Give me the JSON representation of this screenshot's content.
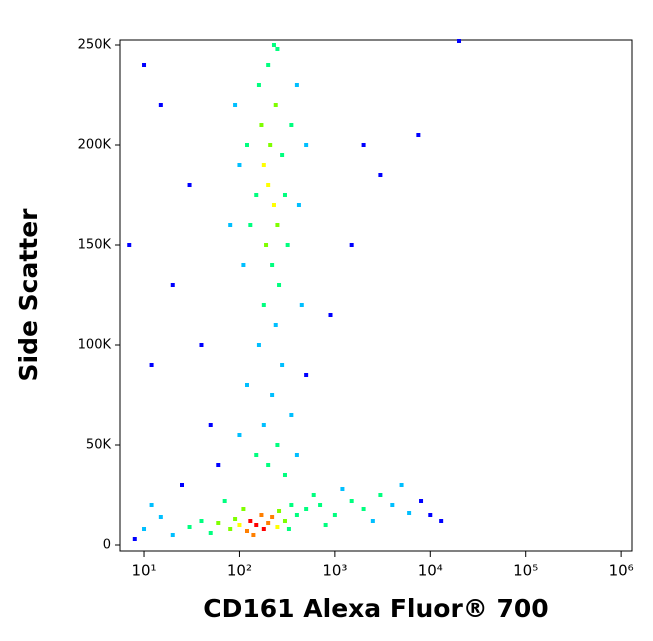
{
  "chart_data": {
    "type": "scatter",
    "x_label": "CD161 Alexa Fluor® 700",
    "y_label": "Side Scatter",
    "xscale": "log",
    "xlim": [
      5.6,
      1300000
    ],
    "xticks": [
      {
        "value": 10,
        "label": "10¹"
      },
      {
        "value": 100,
        "label": "10²"
      },
      {
        "value": 1000,
        "label": "10³"
      },
      {
        "value": 10000,
        "label": "10⁴"
      },
      {
        "value": 100000,
        "label": "10⁵"
      },
      {
        "value": 1000000,
        "label": "10⁶"
      }
    ],
    "ylim": [
      -3000,
      252500
    ],
    "yticks": [
      0,
      {
        "value": 50000,
        "label": "50K"
      },
      {
        "value": 100000,
        "label": "100K"
      },
      {
        "value": 150000,
        "label": "150K"
      },
      {
        "value": 200000,
        "label": "200K"
      },
      {
        "value": 250000,
        "label": "250K"
      }
    ],
    "colormap": [
      "#0000ff",
      "#00bfff",
      "#00ff7f",
      "#7fff00",
      "#ffff00",
      "#ff7f00",
      "#ff0000"
    ],
    "x": [
      150,
      180,
      130,
      200,
      120,
      170,
      250,
      100,
      220,
      140,
      90,
      300,
      80,
      60,
      110,
      260,
      330,
      50,
      40,
      30,
      20,
      15,
      10,
      8,
      12,
      70,
      350,
      400,
      500,
      700,
      1000,
      1500,
      2000,
      3000,
      1200,
      2500,
      4000,
      6000,
      8000,
      10000,
      13000,
      5000,
      800,
      600,
      200,
      250,
      150,
      300,
      180,
      220,
      280,
      160,
      240,
      120,
      350,
      100,
      400,
      60,
      500,
      200,
      230,
      180,
      210,
      250,
      170,
      240,
      190,
      220,
      160,
      280,
      150,
      300,
      130,
      260,
      200,
      250,
      120,
      350,
      320,
      110,
      400,
      100,
      420,
      90,
      450,
      80,
      500,
      180,
      230,
      20,
      30,
      15,
      10,
      40,
      2000,
      7500,
      3000,
      1500,
      50,
      12,
      25,
      20000,
      900,
      7
    ],
    "y": [
      10000,
      8000,
      12000,
      11000,
      7000,
      15000,
      9000,
      10000,
      14000,
      5000,
      13000,
      12000,
      8000,
      11000,
      18000,
      17000,
      8000,
      6000,
      12000,
      9000,
      5000,
      14000,
      8000,
      3000,
      20000,
      22000,
      20000,
      15000,
      18000,
      20000,
      15000,
      22000,
      18000,
      25000,
      28000,
      12000,
      20000,
      16000,
      22000,
      15000,
      12000,
      30000,
      10000,
      25000,
      40000,
      50000,
      45000,
      35000,
      60000,
      75000,
      90000,
      100000,
      110000,
      80000,
      65000,
      55000,
      45000,
      40000,
      85000,
      180000,
      170000,
      190000,
      200000,
      160000,
      210000,
      220000,
      150000,
      140000,
      230000,
      195000,
      175000,
      175000,
      160000,
      130000,
      240000,
      248000,
      200000,
      210000,
      150000,
      140000,
      230000,
      190000,
      170000,
      220000,
      120000,
      160000,
      200000,
      120000,
      250000,
      130000,
      180000,
      220000,
      240000,
      100000,
      200000,
      205000,
      185000,
      150000,
      60000,
      90000,
      30000,
      252000,
      115000,
      150000
    ],
    "density": [
      1.0,
      1.0,
      0.95,
      0.9,
      0.85,
      0.8,
      0.7,
      0.7,
      0.75,
      0.8,
      0.55,
      0.5,
      0.5,
      0.45,
      0.5,
      0.45,
      0.4,
      0.35,
      0.3,
      0.25,
      0.2,
      0.15,
      0.1,
      0.05,
      0.1,
      0.3,
      0.3,
      0.3,
      0.3,
      0.3,
      0.3,
      0.35,
      0.3,
      0.25,
      0.2,
      0.2,
      0.15,
      0.1,
      0.08,
      0.05,
      0.03,
      0.1,
      0.25,
      0.25,
      0.35,
      0.3,
      0.25,
      0.3,
      0.2,
      0.15,
      0.15,
      0.15,
      0.2,
      0.1,
      0.1,
      0.1,
      0.1,
      0.05,
      0.05,
      0.65,
      0.6,
      0.6,
      0.55,
      0.5,
      0.5,
      0.45,
      0.45,
      0.4,
      0.4,
      0.4,
      0.4,
      0.35,
      0.3,
      0.35,
      0.35,
      0.3,
      0.25,
      0.25,
      0.3,
      0.2,
      0.2,
      0.15,
      0.15,
      0.1,
      0.1,
      0.1,
      0.1,
      0.3,
      0.25,
      0.03,
      0.03,
      0.03,
      0.03,
      0.03,
      0.03,
      0.03,
      0.03,
      0.03,
      0.03,
      0.03,
      0.05,
      0.02,
      0.03,
      0.03
    ]
  }
}
